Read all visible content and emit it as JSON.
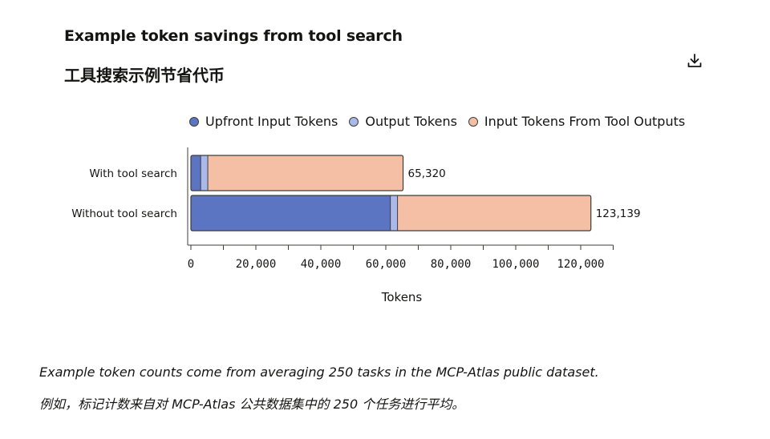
{
  "header": {
    "title_en": "Example token savings from tool search",
    "title_zh": "工具搜索示例节省代币",
    "download_icon": "download-icon"
  },
  "colors": {
    "upfront": "#5b75c2",
    "output": "#aab9ea",
    "tool_outputs": "#f5bfa6",
    "stroke": "#3d3d3a"
  },
  "chart_data": {
    "type": "bar",
    "orientation": "horizontal",
    "stacked": true,
    "categories": [
      "With tool search",
      "Without tool search"
    ],
    "series": [
      {
        "name": "Upfront Input Tokens",
        "values": [
          3000,
          61400
        ]
      },
      {
        "name": "Output Tokens",
        "values": [
          2200,
          2200
        ]
      },
      {
        "name": "Input Tokens From Tool Outputs",
        "values": [
          60120,
          59539
        ]
      }
    ],
    "totals": [
      65320,
      123139
    ],
    "total_labels": [
      "65,320",
      "123,139"
    ],
    "xlabel": "Tokens",
    "ylabel": "",
    "xlim": [
      0,
      130000
    ],
    "xticks": [
      0,
      20000,
      40000,
      60000,
      80000,
      100000,
      120000
    ],
    "xtick_labels": [
      "0",
      "20,000",
      "40,000",
      "60,000",
      "80,000",
      "100,000",
      "120,000"
    ],
    "legend_position": "top",
    "grid": false
  },
  "footnotes": {
    "en": "Example token counts come from averaging 250 tasks in the MCP-Atlas public dataset.",
    "zh": "例如，标记计数来自对 MCP-Atlas 公共数据集中的 250 个任务进行平均。"
  }
}
